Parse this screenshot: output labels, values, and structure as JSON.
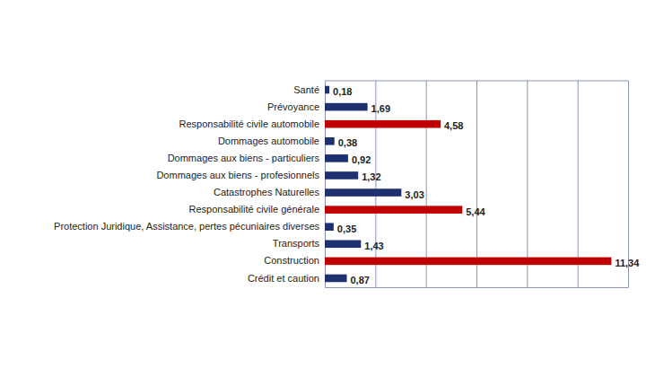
{
  "chart_data": {
    "type": "bar",
    "orientation": "horizontal",
    "categories": [
      "Santé",
      "Prévoyance",
      "Responsabilité civile automobile",
      "Dommages automobile",
      "Dommages aux biens - particuliers",
      "Dommages aux biens - profesionnels",
      "Catastrophes Naturelles",
      "Responsabilité civile générale",
      "Protection Juridique, Assistance, pertes pécuniaires diverses",
      "Transports",
      "Construction",
      "Crédit et caution"
    ],
    "values": [
      0.18,
      1.69,
      4.58,
      0.38,
      0.92,
      1.32,
      3.03,
      5.44,
      0.35,
      1.43,
      11.34,
      0.87
    ],
    "value_labels": [
      "0,18",
      "1,69",
      "4,58",
      "0,38",
      "0,92",
      "1,32",
      "3,03",
      "5,44",
      "0,35",
      "1,43",
      "11,34",
      "0,87"
    ],
    "colors": [
      "#1f3070",
      "#1f3070",
      "#c00000",
      "#1f3070",
      "#1f3070",
      "#1f3070",
      "#1f3070",
      "#c00000",
      "#1f3070",
      "#1f3070",
      "#c00000",
      "#1f3070"
    ],
    "xlim": [
      0,
      12
    ],
    "xticks": [
      0,
      2,
      4,
      6,
      8,
      10,
      12
    ],
    "grid": true,
    "data_labels": true,
    "tick_labels": "y"
  }
}
